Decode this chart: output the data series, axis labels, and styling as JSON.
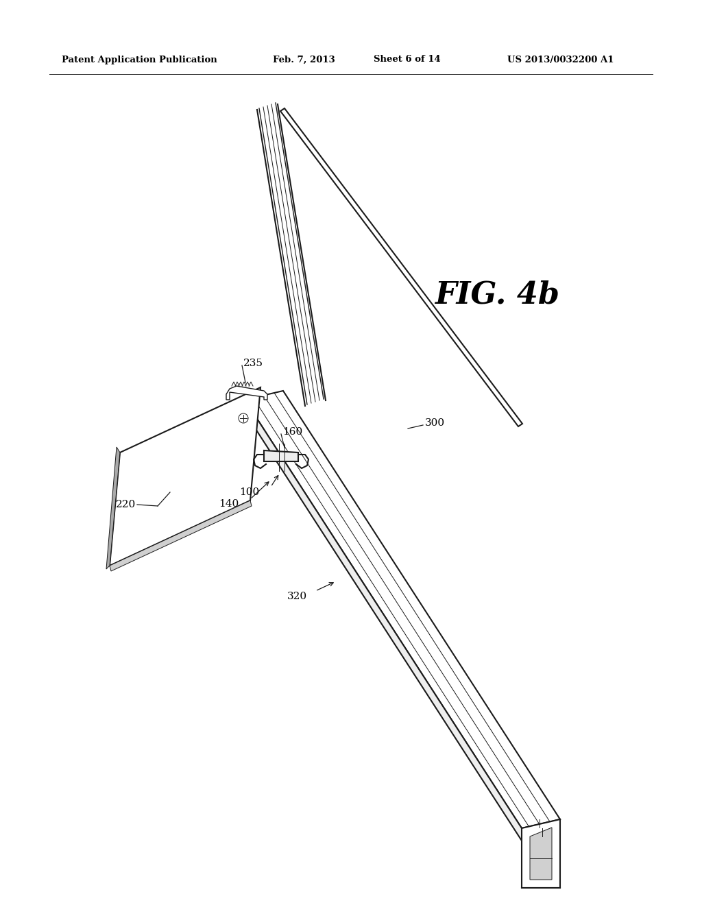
{
  "header_left": "Patent Application Publication",
  "header_date": "Feb. 7, 2013",
  "header_sheet": "Sheet 6 of 14",
  "header_patent": "US 2013/0032200 A1",
  "fig_label": "FIG. 4b",
  "bg_color": "#ffffff",
  "line_color": "#1a1a1a",
  "gray_light": "#eeeeee",
  "gray_mid": "#d0d0d0",
  "gray_dark": "#aaaaaa"
}
